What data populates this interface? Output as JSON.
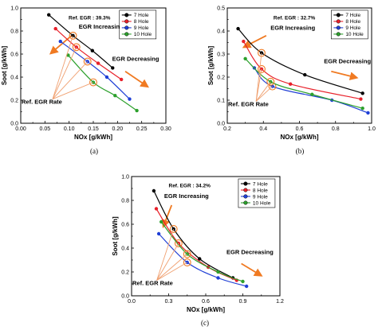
{
  "chart_data": [
    {
      "type": "line",
      "panel": "(a)",
      "ref_label": "Ref. EGR : 39.3%",
      "xlabel": "NOx [g/kWh]",
      "ylabel": "Soot [g/kWh]",
      "xlim": [
        0.0,
        0.3
      ],
      "ylim": [
        0.0,
        1.0
      ],
      "xticks": [
        "0.00",
        "0.05",
        "0.10",
        "0.15",
        "0.20",
        "0.25",
        "0.30"
      ],
      "yticks": [
        "0.0",
        "0.2",
        "0.4",
        "0.6",
        "0.8",
        "1.0"
      ],
      "legend_position": "top-right",
      "annotations": {
        "increasing": "EGR Increasing",
        "decreasing": "EGR Decreasing",
        "rate": "Ref. EGR Rate"
      },
      "series": [
        {
          "name": "7 Hole",
          "color": "#000000",
          "x": [
            0.058,
            0.108,
            0.148,
            0.19
          ],
          "y": [
            0.94,
            0.76,
            0.63,
            0.48
          ],
          "ref_index": 1
        },
        {
          "name": "8 Hole",
          "color": "#e8202a",
          "x": [
            0.072,
            0.115,
            0.16,
            0.208
          ],
          "y": [
            0.82,
            0.66,
            0.52,
            0.38
          ],
          "ref_index": 1
        },
        {
          "name": "9 Hole",
          "color": "#1f3fd6",
          "x": [
            0.082,
            0.138,
            0.178,
            0.225
          ],
          "y": [
            0.71,
            0.535,
            0.4,
            0.21
          ],
          "ref_index": 1
        },
        {
          "name": "10 Hole",
          "color": "#2ca02c",
          "x": [
            0.098,
            0.15,
            0.195,
            0.24
          ],
          "y": [
            0.59,
            0.355,
            0.24,
            0.11
          ],
          "ref_index": 1
        }
      ]
    },
    {
      "type": "line",
      "panel": "(b)",
      "ref_label": "Ref. EGR : 32.7%",
      "xlabel": "NOx [g/kWh]",
      "ylabel": "Soot [g/kWh]",
      "xlim": [
        0.2,
        1.0
      ],
      "ylim": [
        0.0,
        0.5
      ],
      "xticks": [
        "0.2",
        "0.4",
        "0.6",
        "0.8",
        "1.0"
      ],
      "yticks": [
        "0.0",
        "0.1",
        "0.2",
        "0.3",
        "0.4",
        "0.5"
      ],
      "legend_position": "top-right",
      "annotations": {
        "increasing": "EGR Increasing",
        "decreasing": "EGR Decreasing",
        "rate": "Ref. EGR Rate"
      },
      "series": [
        {
          "name": "7 Hole",
          "color": "#000000",
          "x": [
            0.26,
            0.39,
            0.63,
            0.95
          ],
          "y": [
            0.41,
            0.305,
            0.21,
            0.13
          ],
          "ref_index": 1
        },
        {
          "name": "8 Hole",
          "color": "#e8202a",
          "x": [
            0.29,
            0.39,
            0.55,
            0.94
          ],
          "y": [
            0.355,
            0.235,
            0.17,
            0.105
          ],
          "ref_index": 1
        },
        {
          "name": "9 Hole",
          "color": "#1f3fd6",
          "x": [
            0.35,
            0.45,
            0.78,
            0.98
          ],
          "y": [
            0.24,
            0.16,
            0.1,
            0.045
          ],
          "ref_index": 1
        },
        {
          "name": "10 Hole",
          "color": "#2ca02c",
          "x": [
            0.3,
            0.44,
            0.67,
            0.95
          ],
          "y": [
            0.28,
            0.18,
            0.125,
            0.065
          ],
          "ref_index": 1
        }
      ]
    },
    {
      "type": "line",
      "panel": "(c)",
      "ref_label": "Ref. EGR : 34.2%",
      "xlabel": "NOx [g/kWh]",
      "ylabel": "Soot [g/kWh]",
      "xlim": [
        0.0,
        1.2
      ],
      "ylim": [
        0.0,
        1.0
      ],
      "xticks": [
        "0.0",
        "0.3",
        "0.6",
        "0.9",
        "1.2"
      ],
      "yticks": [
        "0.0",
        "0.2",
        "0.4",
        "0.6",
        "0.8",
        "1.0"
      ],
      "legend_position": "top-right",
      "annotations": {
        "increasing": "EGR Increasing",
        "decreasing": "EGR Decreasing",
        "rate": "Ref. EGR Rate"
      },
      "series": [
        {
          "name": "7 Hole",
          "color": "#000000",
          "x": [
            0.18,
            0.34,
            0.55,
            0.82
          ],
          "y": [
            0.88,
            0.56,
            0.31,
            0.15
          ],
          "ref_index": 1
        },
        {
          "name": "8 Hole",
          "color": "#e8202a",
          "x": [
            0.2,
            0.38,
            0.62,
            0.85
          ],
          "y": [
            0.73,
            0.44,
            0.24,
            0.13
          ],
          "ref_index": 1
        },
        {
          "name": "9 Hole",
          "color": "#1f3fd6",
          "x": [
            0.22,
            0.45,
            0.7,
            0.93
          ],
          "y": [
            0.52,
            0.28,
            0.15,
            0.08
          ],
          "ref_index": 1
        },
        {
          "name": "10 Hole",
          "color": "#2ca02c",
          "x": [
            0.24,
            0.45,
            0.7,
            0.9
          ],
          "y": [
            0.62,
            0.35,
            0.2,
            0.12
          ],
          "ref_index": 1
        }
      ]
    }
  ],
  "colors": {
    "arrow": "#f07a22",
    "ref_line": "#f0a070"
  }
}
